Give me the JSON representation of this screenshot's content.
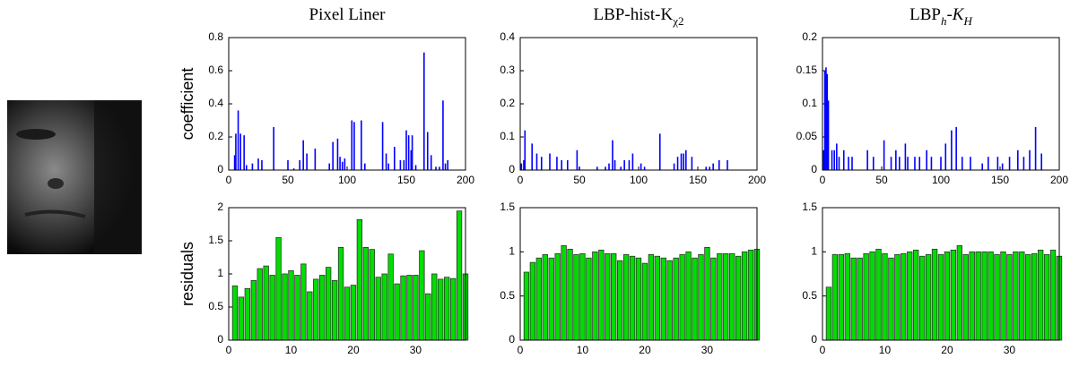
{
  "chart_data": [
    {
      "type": "stem",
      "title_parts": [
        {
          "text": "Pixel Liner"
        }
      ],
      "y_label": "coefficient",
      "color": "#0000ff",
      "x": [
        5,
        6,
        8,
        10,
        13,
        15,
        20,
        25,
        28,
        38,
        50,
        55,
        60,
        63,
        66,
        73,
        85,
        88,
        92,
        94,
        96,
        98,
        104,
        106,
        112,
        115,
        130,
        133,
        135,
        140,
        145,
        148,
        150,
        152,
        154,
        155,
        158,
        165,
        168,
        171,
        175,
        178,
        181,
        183,
        185
      ],
      "values": [
        0.09,
        0.22,
        0.36,
        0.22,
        0.21,
        0.03,
        0.04,
        0.07,
        0.06,
        0.26,
        0.06,
        0.01,
        0.06,
        0.18,
        0.1,
        0.13,
        0.04,
        0.17,
        0.19,
        0.08,
        0.05,
        0.07,
        0.3,
        0.29,
        0.3,
        0.04,
        0.29,
        0.1,
        0.04,
        0.14,
        0.06,
        0.06,
        0.24,
        0.21,
        0.12,
        0.21,
        0.03,
        0.71,
        0.23,
        0.09,
        0.02,
        0.02,
        0.42,
        0.04,
        0.06
      ],
      "xlim": [
        0,
        200
      ],
      "xticks": [
        0,
        50,
        100,
        150,
        200
      ],
      "ylim": [
        0,
        0.8
      ],
      "yticks": [
        0,
        0.2,
        0.4,
        0.6,
        0.8
      ]
    },
    {
      "type": "stem",
      "title_parts": [
        {
          "text": "LBP-hist-K"
        },
        {
          "text": "χ2",
          "sub": true
        }
      ],
      "color": "#0000ff",
      "x": [
        1,
        3,
        4,
        10,
        14,
        18,
        25,
        31,
        35,
        40,
        48,
        50,
        65,
        72,
        75,
        78,
        80,
        85,
        88,
        92,
        95,
        102,
        105,
        118,
        130,
        133,
        136,
        138,
        140,
        145,
        157,
        160,
        163,
        168,
        175
      ],
      "values": [
        0.02,
        0.03,
        0.12,
        0.08,
        0.05,
        0.04,
        0.05,
        0.04,
        0.03,
        0.03,
        0.06,
        0.01,
        0.01,
        0.01,
        0.02,
        0.09,
        0.03,
        0.01,
        0.03,
        0.03,
        0.05,
        0.02,
        0.01,
        0.11,
        0.02,
        0.04,
        0.05,
        0.05,
        0.06,
        0.04,
        0.01,
        0.01,
        0.02,
        0.03,
        0.03
      ],
      "xlim": [
        0,
        200
      ],
      "xticks": [
        0,
        50,
        100,
        150,
        200
      ],
      "ylim": [
        0,
        0.4
      ],
      "yticks": [
        0,
        0.1,
        0.2,
        0.3,
        0.4
      ]
    },
    {
      "type": "stem",
      "title_parts": [
        {
          "text": "LBP"
        },
        {
          "text": "h",
          "sub": true,
          "italic": true
        },
        {
          "text": "-"
        },
        {
          "text": "K",
          "italic": true
        },
        {
          "text": "H",
          "sub": true,
          "italic": true
        }
      ],
      "color": "#0000ff",
      "x": [
        1,
        2,
        3,
        4,
        5,
        8,
        10,
        12,
        14,
        18,
        22,
        25,
        38,
        43,
        52,
        58,
        62,
        65,
        70,
        72,
        78,
        82,
        88,
        92,
        100,
        104,
        109,
        113,
        118,
        125,
        135,
        140,
        148,
        152,
        158,
        165,
        170,
        175,
        180,
        185
      ],
      "values": [
        0.03,
        0.15,
        0.155,
        0.145,
        0.105,
        0.03,
        0.03,
        0.04,
        0.02,
        0.03,
        0.02,
        0.02,
        0.03,
        0.02,
        0.045,
        0.02,
        0.03,
        0.02,
        0.04,
        0.02,
        0.02,
        0.02,
        0.03,
        0.02,
        0.02,
        0.04,
        0.06,
        0.065,
        0.02,
        0.02,
        0.01,
        0.02,
        0.02,
        0.01,
        0.02,
        0.03,
        0.02,
        0.03,
        0.065,
        0.025
      ],
      "xlim": [
        0,
        200
      ],
      "xticks": [
        0,
        50,
        100,
        150,
        200
      ],
      "ylim": [
        0,
        0.2
      ],
      "yticks": [
        0,
        0.05,
        0.1,
        0.15,
        0.2
      ]
    },
    {
      "type": "bar",
      "y_label": "residuals",
      "color": "#00dd00",
      "edgecolor": "#333333",
      "x": [
        1,
        2,
        3,
        4,
        5,
        6,
        7,
        8,
        9,
        10,
        11,
        12,
        13,
        14,
        15,
        16,
        17,
        18,
        19,
        20,
        21,
        22,
        23,
        24,
        25,
        26,
        27,
        28,
        29,
        30,
        31,
        32,
        33,
        34,
        35,
        36,
        37,
        38
      ],
      "values": [
        0.82,
        0.65,
        0.78,
        0.9,
        1.08,
        1.12,
        0.98,
        1.55,
        1.0,
        1.05,
        0.98,
        1.15,
        0.73,
        0.92,
        0.98,
        1.1,
        0.9,
        1.4,
        0.8,
        0.83,
        1.82,
        1.4,
        1.37,
        0.95,
        1.0,
        1.3,
        0.85,
        0.97,
        0.98,
        0.98,
        1.35,
        0.7,
        1.0,
        0.92,
        0.95,
        0.93,
        1.95,
        1.0
      ],
      "xlim": [
        0,
        38
      ],
      "xticks": [
        0,
        10,
        20,
        30
      ],
      "ylim": [
        0,
        2
      ],
      "yticks": [
        0,
        0.5,
        1,
        1.5,
        2
      ]
    },
    {
      "type": "bar",
      "color": "#00dd00",
      "edgecolor": "#333333",
      "x": [
        1,
        2,
        3,
        4,
        5,
        6,
        7,
        8,
        9,
        10,
        11,
        12,
        13,
        14,
        15,
        16,
        17,
        18,
        19,
        20,
        21,
        22,
        23,
        24,
        25,
        26,
        27,
        28,
        29,
        30,
        31,
        32,
        33,
        34,
        35,
        36,
        37,
        38
      ],
      "values": [
        0.77,
        0.88,
        0.93,
        0.97,
        0.93,
        0.98,
        1.07,
        1.03,
        0.97,
        0.98,
        0.93,
        1.0,
        1.02,
        0.98,
        0.98,
        0.9,
        0.97,
        0.95,
        0.93,
        0.87,
        0.97,
        0.95,
        0.93,
        0.9,
        0.93,
        0.97,
        1.0,
        0.93,
        0.97,
        1.05,
        0.93,
        0.98,
        0.98,
        0.98,
        0.95,
        1.0,
        1.02,
        1.03
      ],
      "xlim": [
        0,
        38
      ],
      "xticks": [
        0,
        10,
        20,
        30
      ],
      "ylim": [
        0,
        1.5
      ],
      "yticks": [
        0,
        0.5,
        1,
        1.5
      ]
    },
    {
      "type": "bar",
      "color": "#00dd00",
      "edgecolor": "#333333",
      "x": [
        1,
        2,
        3,
        4,
        5,
        6,
        7,
        8,
        9,
        10,
        11,
        12,
        13,
        14,
        15,
        16,
        17,
        18,
        19,
        20,
        21,
        22,
        23,
        24,
        25,
        26,
        27,
        28,
        29,
        30,
        31,
        32,
        33,
        34,
        35,
        36,
        37,
        38
      ],
      "values": [
        0.6,
        0.97,
        0.97,
        0.98,
        0.93,
        0.93,
        0.98,
        1.0,
        1.03,
        0.98,
        0.93,
        0.97,
        0.98,
        1.0,
        1.02,
        0.95,
        0.97,
        1.03,
        0.97,
        1.0,
        1.02,
        1.07,
        0.97,
        1.0,
        1.0,
        1.0,
        1.0,
        0.97,
        1.0,
        0.97,
        1.0,
        1.0,
        0.97,
        0.98,
        1.02,
        0.97,
        1.02,
        0.95
      ],
      "xlim": [
        0,
        38
      ],
      "xticks": [
        0,
        10,
        20,
        30
      ],
      "ylim": [
        0,
        1.5
      ],
      "yticks": [
        0,
        0.5,
        1,
        1.5
      ]
    }
  ]
}
